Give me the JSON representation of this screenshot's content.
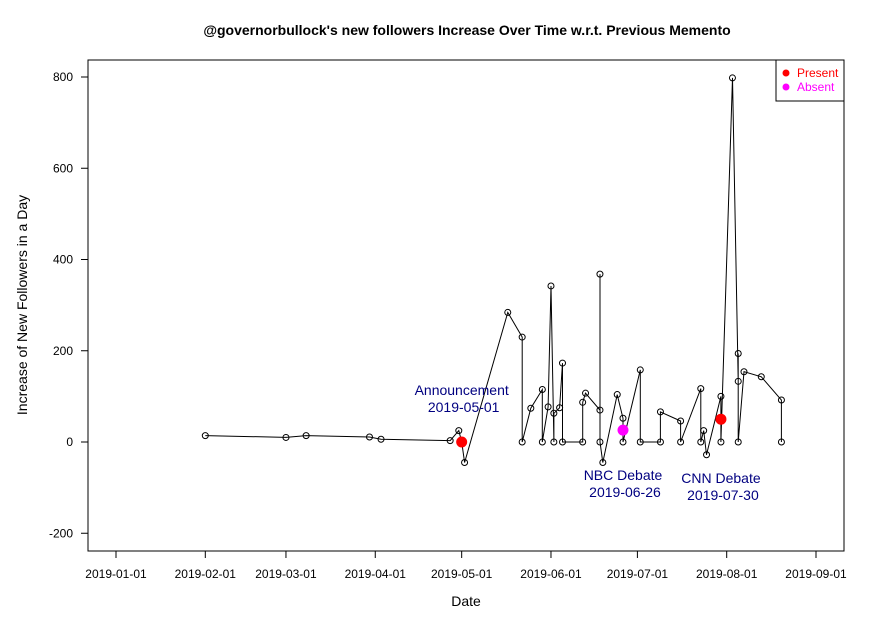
{
  "chart_data": {
    "type": "scatter",
    "title": "@governorbullock's new followers Increase Over Time w.r.t. Previous Memento",
    "xlabel": "Date",
    "ylabel": "Increase of New Followers in a Day",
    "x_ticks": [
      "2019-01-01",
      "2019-02-01",
      "2019-03-01",
      "2019-04-01",
      "2019-05-01",
      "2019-06-01",
      "2019-07-01",
      "2019-08-01",
      "2019-09-01"
    ],
    "y_ticks": [
      -200,
      0,
      200,
      400,
      600,
      800
    ],
    "xlim": [
      "2019-01-01",
      "2019-09-01"
    ],
    "ylim": [
      -220,
      840
    ],
    "series": [
      {
        "points": [
          [
            "2019-02-01",
            14
          ],
          [
            "2019-03-01",
            10
          ],
          [
            "2019-03-08",
            14
          ],
          [
            "2019-03-30",
            11
          ],
          [
            "2019-04-03",
            6
          ],
          [
            "2019-04-27",
            3
          ],
          [
            "2019-04-30",
            25
          ],
          [
            "2019-05-01",
            0
          ],
          [
            "2019-05-02",
            -45
          ],
          [
            "2019-05-17",
            284
          ],
          [
            "2019-05-22",
            230
          ],
          [
            "2019-05-22",
            0
          ],
          [
            "2019-05-25",
            74
          ],
          [
            "2019-05-29",
            115
          ],
          [
            "2019-05-29",
            0
          ],
          [
            "2019-05-31",
            77
          ],
          [
            "2019-06-01",
            342
          ],
          [
            "2019-06-02",
            0
          ],
          [
            "2019-06-02",
            63
          ],
          [
            "2019-06-04",
            75
          ],
          [
            "2019-06-05",
            173
          ],
          [
            "2019-06-05",
            0
          ],
          [
            "2019-06-12",
            0
          ],
          [
            "2019-06-12",
            87
          ],
          [
            "2019-06-13",
            107
          ],
          [
            "2019-06-18",
            70
          ],
          [
            "2019-06-18",
            368
          ],
          [
            "2019-06-18",
            0
          ],
          [
            "2019-06-19",
            -45
          ],
          [
            "2019-06-24",
            104
          ],
          [
            "2019-06-26",
            52
          ],
          [
            "2019-06-26",
            0
          ],
          [
            "2019-07-02",
            158
          ],
          [
            "2019-07-02",
            0
          ],
          [
            "2019-07-09",
            0
          ],
          [
            "2019-07-09",
            66
          ],
          [
            "2019-07-16",
            46
          ],
          [
            "2019-07-16",
            0
          ],
          [
            "2019-07-23",
            117
          ],
          [
            "2019-07-23",
            0
          ],
          [
            "2019-07-24",
            25
          ],
          [
            "2019-07-25",
            -28
          ],
          [
            "2019-07-30",
            100
          ],
          [
            "2019-07-30",
            0
          ],
          [
            "2019-08-03",
            798
          ],
          [
            "2019-08-05",
            133
          ],
          [
            "2019-08-05",
            194
          ],
          [
            "2019-08-05",
            0
          ],
          [
            "2019-08-07",
            154
          ],
          [
            "2019-08-13",
            143
          ],
          [
            "2019-08-20",
            92
          ],
          [
            "2019-08-20",
            0
          ]
        ]
      }
    ],
    "events": [
      {
        "date": "2019-05-01",
        "y": 0,
        "status": "Present",
        "label": "Announcement",
        "label_date": "2019-05-01"
      },
      {
        "date": "2019-06-26",
        "y": 26,
        "status": "Absent",
        "label": "NBC Debate",
        "label_date": "2019-06-26"
      },
      {
        "date": "2019-07-30",
        "y": 50,
        "status": "Present",
        "label": "CNN Debate",
        "label_date": "2019-07-30"
      }
    ],
    "legend": {
      "position": "top-right",
      "items": [
        {
          "label": "Present",
          "color": "#ff0000"
        },
        {
          "label": "Absent",
          "color": "#ff00ff"
        }
      ]
    },
    "grid": false,
    "colors": {
      "present": "#ff0000",
      "absent": "#ff00ff",
      "annotation": "#000080",
      "line": "#000000"
    }
  }
}
